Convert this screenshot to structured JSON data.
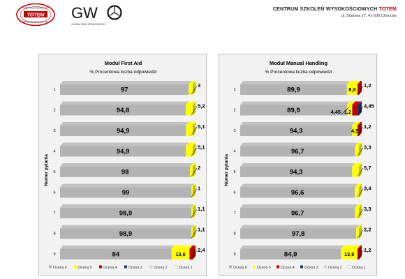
{
  "header": {
    "seal_text": "CENTRUM SZKOLEŃ WYSOKOŚCIOWYCH TOTEM",
    "gwo_logo": "GWO",
    "gwo_subtitle": "GLOBAL WIND ORGANISATION",
    "company_name_prefix": "CENTRUM SZKOLEŃ WYSOKOŚCIOWYCH ",
    "company_name_brand": "TOTEM",
    "company_address": "ul. Stalowa 17, 41-506 Chorzów",
    "brand_color": "#c00000"
  },
  "chart_data": [
    {
      "type": "bar",
      "orientation": "horizontal",
      "stacked": true,
      "style": "3d",
      "title": "Moduł First Aid",
      "subtitle": "% Procentowa liczba odpowiedzi",
      "ylabel": "Numer pytania",
      "categories": [
        "1",
        "2",
        "3",
        "4",
        "5",
        "6",
        "7",
        "8",
        "9"
      ],
      "xlim": [
        0,
        100
      ],
      "legend_position": "bottom",
      "series": [
        {
          "name": "Ocena 6",
          "color": "#b3b3b3",
          "values": [
            97,
            94.8,
            94.9,
            94.9,
            98,
            99,
            98.9,
            98.9,
            84
          ]
        },
        {
          "name": "Ocena 5",
          "color": "#ffff00",
          "values": [
            3,
            5.2,
            5.1,
            5.1,
            2,
            1,
            1.1,
            1.1,
            13.6
          ]
        },
        {
          "name": "Ocena 4",
          "color": "#c00000",
          "values": [
            0,
            0,
            0,
            0,
            0,
            0,
            0,
            0,
            2.4
          ]
        },
        {
          "name": "Ocena 3",
          "color": "#1f3864",
          "values": [
            0,
            0,
            0,
            0,
            0,
            0,
            0,
            0,
            0
          ]
        },
        {
          "name": "Ocena 2",
          "color": "#d0d0d0",
          "values": [
            0,
            0,
            0,
            0,
            0,
            0,
            0,
            0,
            0
          ]
        },
        {
          "name": "Ocena 1",
          "color": "#ffffff",
          "values": [
            0,
            0,
            0,
            0,
            0,
            0,
            0,
            0,
            0
          ]
        }
      ],
      "data_labels": [
        {
          "category": "1",
          "inside": [
            "97"
          ],
          "outside": "3"
        },
        {
          "category": "2",
          "inside": [
            "94,8"
          ],
          "outside": "5,2"
        },
        {
          "category": "3",
          "inside": [
            "94,9"
          ],
          "outside": "5,1"
        },
        {
          "category": "4",
          "inside": [
            "94,9"
          ],
          "outside": "5,1"
        },
        {
          "category": "5",
          "inside": [
            "98"
          ],
          "outside": "2"
        },
        {
          "category": "6",
          "inside": [
            "99"
          ],
          "outside": "1"
        },
        {
          "category": "7",
          "inside": [
            "98,9"
          ],
          "outside": "1,1"
        },
        {
          "category": "8",
          "inside": [
            "98,9"
          ],
          "outside": "1,1"
        },
        {
          "category": "9",
          "inside": [
            "84",
            "13,6"
          ],
          "outside": "2,4"
        }
      ]
    },
    {
      "type": "bar",
      "orientation": "horizontal",
      "stacked": true,
      "style": "3d",
      "title": "Moduł Manual Handling",
      "subtitle": "% Procentowa liczba odpowiedzi",
      "ylabel": "Numer pytania",
      "categories": [
        "1",
        "2",
        "3",
        "4",
        "5",
        "6",
        "7",
        "8",
        "9"
      ],
      "xlim": [
        0,
        100
      ],
      "legend_position": "bottom",
      "series": [
        {
          "name": "Ocena 6",
          "color": "#b3b3b3",
          "values": [
            89.9,
            89.9,
            94.3,
            96.7,
            94.3,
            96.6,
            96.7,
            97.8,
            84.9
          ]
        },
        {
          "name": "Ocena 5",
          "color": "#ffff00",
          "values": [
            8.9,
            4.45,
            4.5,
            3.3,
            5.7,
            3.4,
            3.3,
            2.2,
            13.9
          ]
        },
        {
          "name": "Ocena 4",
          "color": "#c00000",
          "values": [
            1.2,
            4.45,
            1.2,
            0,
            0,
            0,
            0,
            0,
            1.2
          ]
        },
        {
          "name": "Ocena 3",
          "color": "#1f3864",
          "values": [
            0,
            1.2,
            0,
            0,
            0,
            0,
            0,
            0,
            0
          ]
        },
        {
          "name": "Ocena 2",
          "color": "#d0d0d0",
          "values": [
            0,
            0,
            0,
            0,
            0,
            0,
            0,
            0,
            0
          ]
        },
        {
          "name": "Ocena 1",
          "color": "#ffffff",
          "values": [
            0,
            0,
            0,
            0,
            0,
            0,
            0,
            0,
            0
          ]
        }
      ],
      "data_labels": [
        {
          "category": "1",
          "inside": [
            "89,9",
            "8,9"
          ],
          "outside": "1,2"
        },
        {
          "category": "2",
          "inside": [
            "89,9"
          ],
          "callouts": [
            "4,45",
            "1,2"
          ],
          "outside": "4,45"
        },
        {
          "category": "3",
          "inside": [
            "94,3",
            "4,5"
          ],
          "outside": "1,2"
        },
        {
          "category": "4",
          "inside": [
            "96,7"
          ],
          "outside": "3,3"
        },
        {
          "category": "5",
          "inside": [
            "94,3"
          ],
          "outside": "5,7"
        },
        {
          "category": "6",
          "inside": [
            "96,6"
          ],
          "outside": "3,4"
        },
        {
          "category": "7",
          "inside": [
            "96,7"
          ],
          "outside": "3,3"
        },
        {
          "category": "8",
          "inside": [
            "97,8"
          ],
          "outside": "2,2"
        },
        {
          "category": "9",
          "inside": [
            "84,9",
            "13,9"
          ],
          "outside": "1,2"
        }
      ]
    }
  ]
}
